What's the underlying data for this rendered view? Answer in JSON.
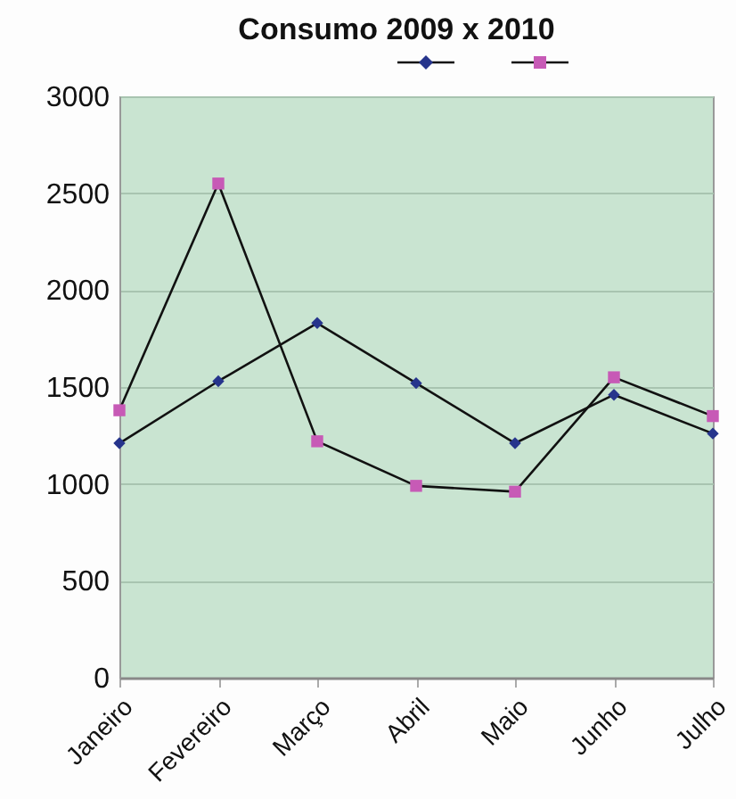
{
  "chart_data": {
    "type": "line",
    "title": "Consumo 2009 x 2010",
    "categories": [
      "Janeiro",
      "Fevereiro",
      "Março",
      "Abril",
      "Maio",
      "Junho",
      "Julho"
    ],
    "series": [
      {
        "color": "#26348c",
        "marker": "diamond",
        "values": [
          1210,
          1530,
          1830,
          1520,
          1210,
          1460,
          1260
        ]
      },
      {
        "color": "#c75ab6",
        "marker": "square",
        "values": [
          1380,
          2550,
          1220,
          990,
          960,
          1550,
          1350
        ]
      }
    ],
    "ylim": [
      0,
      3000
    ],
    "yticks": [
      0,
      500,
      1000,
      1500,
      2000,
      2500,
      3000
    ],
    "grid": "y"
  }
}
